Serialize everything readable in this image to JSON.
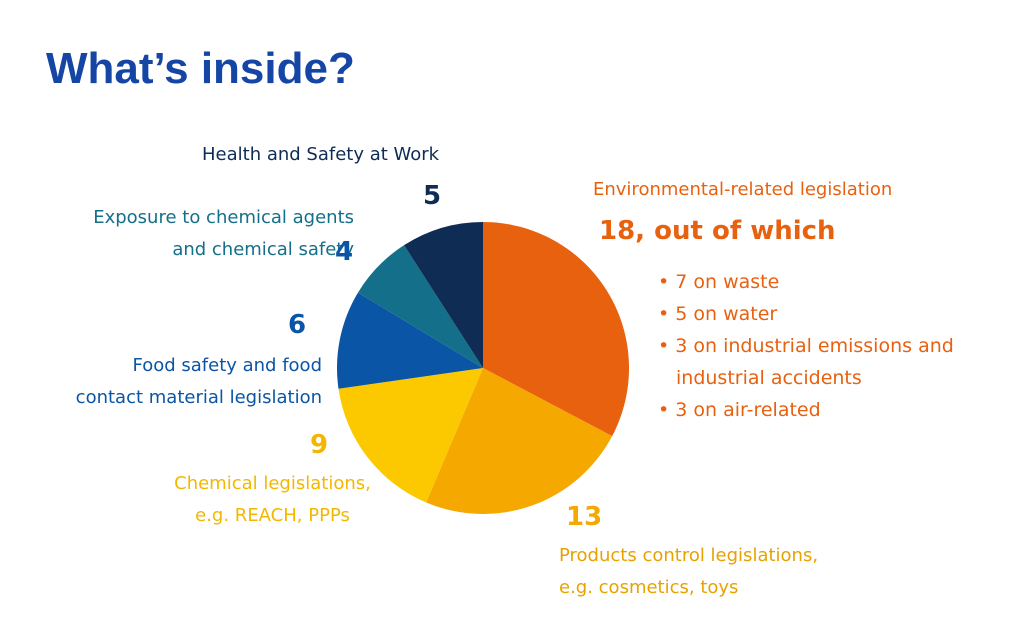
{
  "title": "What’s inside?",
  "colors": {
    "title": "#1546a6",
    "environmental": "#e8610f",
    "products": "#f4a800",
    "chemical": "#fcc900",
    "food": "#0a55a6",
    "exposure": "#136f8a",
    "health": "#0f2c55"
  },
  "chart_data": {
    "type": "pie",
    "title": "What’s inside?",
    "slices": [
      {
        "label": "Environmental-related legislation",
        "value": 18,
        "value_label": "18, out of which",
        "color": "#e8610f"
      },
      {
        "label": "Products control legislations, e.g. cosmetics, toys",
        "value": 13,
        "value_label": "13",
        "color": "#f4a800"
      },
      {
        "label": "Chemical legislations, e.g. REACH, PPPs",
        "value": 9,
        "value_label": "9",
        "color": "#fcc900"
      },
      {
        "label": "Food safety and food contact material legislation",
        "value": 6,
        "value_label": "6",
        "color": "#0a55a6"
      },
      {
        "label": "Exposure to chemical agents and chemical safety",
        "value": 4,
        "value_label": "4",
        "color": "#136f8a"
      },
      {
        "label": "Health and Safety at Work",
        "value": 5,
        "value_label": "5",
        "color": "#0f2c55"
      }
    ],
    "breakdown": [
      {
        "text": "7 on waste",
        "value": 7
      },
      {
        "text": "5 on water",
        "value": 5
      },
      {
        "text": "3 on industrial emissions and industrial accidents",
        "value": 3
      },
      {
        "text": "3 on air-related",
        "value": 3
      }
    ]
  },
  "labels": {
    "health": "Health and Safety at Work",
    "exposure_line1": "Exposure to chemical agents",
    "exposure_line2": "and chemical safety",
    "food_line1": "Food safety and food",
    "food_line2": "contact material legislation",
    "chemical_line1": "Chemical legislations,",
    "chemical_line2": "e.g. REACH, PPPs",
    "products_line1": "Products control legislations,",
    "products_line2": "e.g. cosmetics, toys",
    "environmental": "Environmental-related legislation"
  },
  "breakdown_items": [
    "• 7 on waste",
    "• 5 on water",
    "• 3 on industrial emissions and",
    "industrial accidents",
    "• 3 on air-related"
  ]
}
